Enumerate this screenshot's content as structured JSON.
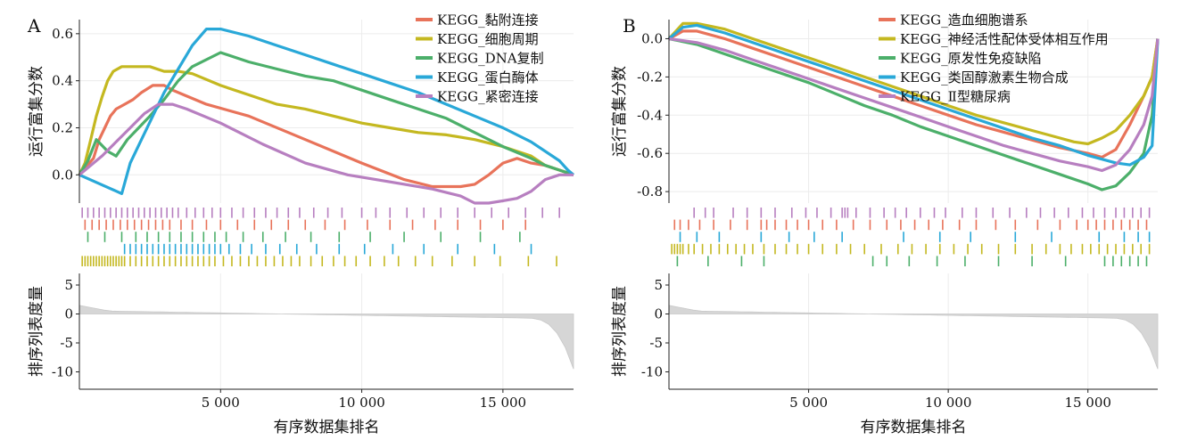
{
  "figure": {
    "xlabel": "有序数据集排名",
    "ylabel_es": "运行富集分数",
    "ylabel_rank": "排序列表度量"
  },
  "chart_data": [
    {
      "panel": "A",
      "type": "line",
      "xlabel": "有序数据集排名",
      "ylabel": "运行富集分数",
      "xlim": [
        0,
        17500
      ],
      "ylim": [
        -0.12,
        0.66
      ],
      "xticks": [
        5000,
        10000,
        15000
      ],
      "xtick_labels": [
        "5 000",
        "10 000",
        "15 000"
      ],
      "yticks": [
        0.0,
        0.2,
        0.4,
        0.6
      ],
      "ytick_labels": [
        "0.0",
        "0.2",
        "0.4",
        "0.6"
      ],
      "grid": true,
      "legend": "top-right",
      "series": [
        {
          "name": "KEGG_黏附连接",
          "color": "#e8735a",
          "x": [
            0,
            200,
            500,
            700,
            900,
            1100,
            1300,
            1600,
            1900,
            2200,
            2600,
            3000,
            3300,
            3700,
            4500,
            6000,
            8000,
            10000,
            11500,
            12500,
            13500,
            14000,
            14500,
            15000,
            15500,
            16000,
            16500,
            17000,
            17500
          ],
          "y": [
            0.0,
            0.03,
            0.07,
            0.15,
            0.2,
            0.25,
            0.28,
            0.3,
            0.32,
            0.35,
            0.38,
            0.38,
            0.36,
            0.34,
            0.3,
            0.25,
            0.15,
            0.05,
            -0.02,
            -0.05,
            -0.05,
            -0.04,
            0.0,
            0.05,
            0.07,
            0.05,
            0.04,
            0.02,
            0.0
          ]
        },
        {
          "name": "KEGG_细胞周期",
          "color": "#c4b820",
          "x": [
            0,
            200,
            400,
            600,
            800,
            1000,
            1200,
            1500,
            2000,
            2500,
            3000,
            3500,
            4000,
            5000,
            6000,
            7000,
            8000,
            9000,
            10000,
            11000,
            12000,
            13000,
            14000,
            15000,
            16000,
            16500,
            17000,
            17500
          ],
          "y": [
            0.0,
            0.05,
            0.15,
            0.25,
            0.33,
            0.4,
            0.44,
            0.46,
            0.46,
            0.46,
            0.44,
            0.44,
            0.43,
            0.38,
            0.34,
            0.3,
            0.28,
            0.25,
            0.22,
            0.2,
            0.18,
            0.17,
            0.15,
            0.12,
            0.08,
            0.04,
            0.02,
            0.0
          ]
        },
        {
          "name": "KEGG_DNA复制",
          "color": "#4caf6a",
          "x": [
            0,
            300,
            600,
            1000,
            1300,
            1700,
            2100,
            2500,
            3000,
            3500,
            4000,
            5000,
            6000,
            7000,
            8000,
            9000,
            10000,
            11000,
            12000,
            13000,
            14000,
            15000,
            16000,
            16500,
            17000,
            17500
          ],
          "y": [
            0.0,
            0.06,
            0.15,
            0.1,
            0.08,
            0.15,
            0.2,
            0.25,
            0.32,
            0.4,
            0.46,
            0.52,
            0.48,
            0.45,
            0.42,
            0.4,
            0.36,
            0.32,
            0.28,
            0.24,
            0.18,
            0.12,
            0.07,
            0.04,
            0.02,
            0.0
          ]
        },
        {
          "name": "KEGG_蛋白酶体",
          "color": "#29a8d8",
          "x": [
            0,
            1500,
            1800,
            2200,
            2600,
            3000,
            3500,
            4000,
            4500,
            5000,
            6000,
            7000,
            8000,
            9000,
            10000,
            11000,
            12000,
            13000,
            14000,
            15000,
            16000,
            17000,
            17300,
            17500
          ],
          "y": [
            0.0,
            -0.08,
            0.05,
            0.15,
            0.25,
            0.35,
            0.45,
            0.55,
            0.62,
            0.62,
            0.59,
            0.55,
            0.51,
            0.47,
            0.43,
            0.39,
            0.35,
            0.3,
            0.25,
            0.2,
            0.14,
            0.06,
            0.02,
            0.0
          ]
        },
        {
          "name": "KEGG_紧密连接",
          "color": "#b77fc0",
          "x": [
            0,
            300,
            800,
            1300,
            1800,
            2300,
            2800,
            3300,
            3800,
            5000,
            6500,
            8000,
            9500,
            11000,
            12500,
            13500,
            14000,
            14500,
            15000,
            15500,
            16000,
            16500,
            17000,
            17500
          ],
          "y": [
            0.0,
            0.03,
            0.08,
            0.14,
            0.2,
            0.26,
            0.3,
            0.3,
            0.28,
            0.22,
            0.13,
            0.05,
            0.0,
            -0.03,
            -0.06,
            -0.09,
            -0.12,
            -0.12,
            -0.11,
            -0.1,
            -0.07,
            -0.02,
            0.0,
            0.0
          ]
        }
      ],
      "hit_rows": [
        {
          "color": "#b77fc0",
          "positions": [
            100,
            300,
            500,
            700,
            900,
            1100,
            1300,
            1500,
            1700,
            1900,
            2100,
            2300,
            2500,
            2700,
            2900,
            3100,
            3300,
            3500,
            3800,
            4100,
            4400,
            4700,
            5000,
            5400,
            5800,
            6200,
            6600,
            7000,
            7400,
            7800,
            8300,
            8800,
            9300,
            10000,
            10500,
            11000,
            11600,
            12200,
            12800,
            13400,
            14000,
            14600,
            15200,
            15800,
            16400,
            17000
          ]
        },
        {
          "color": "#e8735a",
          "positions": [
            200,
            450,
            700,
            950,
            1200,
            1450,
            1700,
            1950,
            2200,
            2450,
            2700,
            2950,
            3200,
            3600,
            4000,
            4500,
            5000,
            5600,
            6200,
            6800,
            7400,
            8000,
            8700,
            9400,
            10200,
            11000,
            11800,
            12600,
            13400,
            14200,
            15000,
            15800
          ]
        },
        {
          "color": "#4caf6a",
          "positions": [
            300,
            900,
            1500,
            2000,
            2400,
            2800,
            3200,
            3600,
            4000,
            4400,
            4800,
            5200,
            5800,
            6500,
            7300,
            8200,
            9200,
            10300,
            11500,
            12800,
            14200,
            15600
          ]
        },
        {
          "color": "#29a8d8",
          "positions": [
            1600,
            1800,
            2000,
            2200,
            2400,
            2600,
            2800,
            3000,
            3200,
            3400,
            3600,
            3800,
            4000,
            4200,
            4400,
            4600,
            4800,
            5000,
            5300,
            5700,
            6100,
            6600,
            7100,
            7700,
            8400,
            9200,
            10100,
            11100,
            12200,
            13400,
            14700,
            16000
          ]
        },
        {
          "color": "#c4b820",
          "positions": [
            100,
            200,
            300,
            400,
            500,
            600,
            700,
            800,
            900,
            1000,
            1100,
            1200,
            1300,
            1400,
            1500,
            1600,
            1800,
            2000,
            2200,
            2400,
            2600,
            2800,
            3000,
            3200,
            3400,
            3600,
            3800,
            4000,
            4200,
            4400,
            4600,
            4800,
            5100,
            5400,
            5700,
            6000,
            6300,
            6600,
            6900,
            7200,
            7500,
            7800,
            8200,
            8600,
            9000,
            9400,
            9800,
            10300,
            10800,
            11300,
            11900,
            12500,
            13200,
            14000,
            14900,
            15900,
            16900
          ]
        }
      ],
      "metric": {
        "ylim": [
          -13,
          7
        ],
        "yticks": [
          5,
          0,
          -5,
          -10
        ],
        "ytick_labels": [
          "5",
          "0",
          "-5",
          "-10"
        ],
        "start": 1.5,
        "end": -9.5
      }
    },
    {
      "panel": "B",
      "type": "line",
      "xlabel": "有序数据集排名",
      "ylabel": "运行富集分数",
      "xlim": [
        0,
        17500
      ],
      "ylim": [
        -0.86,
        0.1
      ],
      "xticks": [
        5000,
        10000,
        15000
      ],
      "xtick_labels": [
        "5 000",
        "10 000",
        "15 000"
      ],
      "yticks": [
        0.0,
        -0.2,
        -0.4,
        -0.6,
        -0.8
      ],
      "ytick_labels": [
        "0.0",
        "-0.2",
        "-0.4",
        "-0.6",
        "-0.8"
      ],
      "grid": true,
      "legend": "top-right",
      "series": [
        {
          "name": "KEGG_造血细胞谱系",
          "color": "#e8735a",
          "x": [
            0,
            500,
            1000,
            2000,
            3000,
            4000,
            5000,
            6000,
            7000,
            8000,
            9000,
            10000,
            11000,
            12000,
            13000,
            14000,
            15000,
            15500,
            16000,
            16500,
            17000,
            17300,
            17500
          ],
          "y": [
            0.0,
            0.04,
            0.04,
            0.0,
            -0.05,
            -0.1,
            -0.15,
            -0.2,
            -0.25,
            -0.3,
            -0.35,
            -0.4,
            -0.45,
            -0.49,
            -0.53,
            -0.57,
            -0.6,
            -0.62,
            -0.58,
            -0.45,
            -0.3,
            -0.2,
            0.0
          ]
        },
        {
          "name": "KEGG_神经活性配体受体相互作用",
          "color": "#c4b820",
          "x": [
            0,
            500,
            1000,
            2000,
            3000,
            4000,
            5000,
            6000,
            7000,
            8000,
            9000,
            10000,
            11000,
            12000,
            13000,
            14000,
            14500,
            15000,
            15500,
            16000,
            16500,
            17000,
            17300,
            17500
          ],
          "y": [
            0.0,
            0.08,
            0.08,
            0.05,
            0.0,
            -0.05,
            -0.1,
            -0.15,
            -0.2,
            -0.25,
            -0.3,
            -0.35,
            -0.4,
            -0.44,
            -0.48,
            -0.52,
            -0.54,
            -0.55,
            -0.52,
            -0.48,
            -0.4,
            -0.3,
            -0.2,
            0.0
          ]
        },
        {
          "name": "KEGG_原发性免疫缺陷",
          "color": "#4caf6a",
          "x": [
            0,
            1000,
            2000,
            3000,
            4000,
            5000,
            6000,
            7000,
            8000,
            9000,
            10000,
            11000,
            12000,
            13000,
            14000,
            15000,
            15500,
            16000,
            16500,
            17000,
            17300,
            17500
          ],
          "y": [
            0.0,
            -0.03,
            -0.08,
            -0.13,
            -0.18,
            -0.23,
            -0.29,
            -0.35,
            -0.4,
            -0.46,
            -0.51,
            -0.56,
            -0.61,
            -0.66,
            -0.71,
            -0.76,
            -0.79,
            -0.77,
            -0.7,
            -0.6,
            -0.4,
            0.0
          ]
        },
        {
          "name": "KEGG_类固醇激素生物合成",
          "color": "#29a8d8",
          "x": [
            0,
            500,
            1000,
            2000,
            3000,
            4000,
            5000,
            6000,
            7000,
            8000,
            9000,
            10000,
            11000,
            12000,
            13000,
            14000,
            15000,
            16000,
            16500,
            17000,
            17300,
            17500
          ],
          "y": [
            0.0,
            0.06,
            0.07,
            0.03,
            -0.02,
            -0.07,
            -0.12,
            -0.17,
            -0.22,
            -0.27,
            -0.32,
            -0.37,
            -0.42,
            -0.47,
            -0.52,
            -0.56,
            -0.61,
            -0.65,
            -0.66,
            -0.62,
            -0.56,
            0.0
          ]
        },
        {
          "name": "KEGG_Ⅱ型糖尿病",
          "color": "#b77fc0",
          "x": [
            0,
            1000,
            2000,
            3000,
            4000,
            5000,
            6000,
            7000,
            8000,
            9000,
            10000,
            11000,
            12000,
            13000,
            14000,
            15000,
            15500,
            16000,
            16500,
            17000,
            17300,
            17500
          ],
          "y": [
            0.0,
            -0.02,
            -0.06,
            -0.11,
            -0.16,
            -0.21,
            -0.26,
            -0.31,
            -0.36,
            -0.41,
            -0.46,
            -0.51,
            -0.56,
            -0.6,
            -0.64,
            -0.67,
            -0.69,
            -0.66,
            -0.58,
            -0.45,
            -0.3,
            0.0
          ]
        }
      ],
      "hit_rows": [
        {
          "color": "#b77fc0",
          "positions": [
            900,
            1300,
            1600,
            2300,
            2800,
            3300,
            3800,
            4400,
            4900,
            5300,
            5800,
            6200,
            6300,
            6400,
            6700,
            7200,
            7700,
            8100,
            8500,
            9000,
            9500,
            9900,
            10500,
            11000,
            11600,
            12200,
            12800,
            13300,
            13800,
            14300,
            14800,
            15200,
            15600,
            16000,
            16300,
            16600,
            16900,
            17200
          ]
        },
        {
          "color": "#e8735a",
          "positions": [
            200,
            400,
            700,
            1100,
            1600,
            2200,
            2800,
            3300,
            3500,
            3800,
            4200,
            4600,
            5000,
            5500,
            6000,
            6600,
            7200,
            7800,
            8300,
            8800,
            9300,
            9800,
            10400,
            11000,
            11700,
            12400,
            13200,
            14000,
            14600,
            15000,
            15300,
            15600,
            15900,
            16200,
            16500,
            16800,
            17100
          ]
        },
        {
          "color": "#29a8d8",
          "positions": [
            400,
            1000,
            1800,
            3300,
            4300,
            5200,
            6200,
            8400,
            9700,
            10800,
            12400,
            13700,
            15400,
            16300,
            16800,
            17200
          ]
        },
        {
          "color": "#c4b820",
          "positions": [
            100,
            200,
            300,
            400,
            500,
            700,
            900,
            1200,
            1500,
            1800,
            2100,
            2400,
            2700,
            3000,
            3400,
            3800,
            4200,
            4600,
            5000,
            5500,
            6000,
            6500,
            7000,
            7600,
            8200,
            8700,
            9200,
            9700,
            10200,
            10700,
            11200,
            11800,
            12400,
            13000,
            13500,
            14000,
            14400,
            14800,
            15100,
            15400,
            15700,
            16000,
            16300,
            16600,
            16900,
            17200
          ]
        },
        {
          "color": "#4caf6a",
          "positions": [
            300,
            1400,
            2600,
            3400,
            7300,
            7800,
            8600,
            9600,
            10600,
            11800,
            13000,
            14200,
            15600,
            15900,
            16200,
            16500,
            16800,
            17100
          ]
        }
      ],
      "metric": {
        "ylim": [
          -13,
          7
        ],
        "yticks": [
          5,
          0,
          -5,
          -10
        ],
        "ytick_labels": [
          "5",
          "0",
          "-5",
          "-10"
        ],
        "start": 1.5,
        "end": -9.5
      }
    }
  ]
}
